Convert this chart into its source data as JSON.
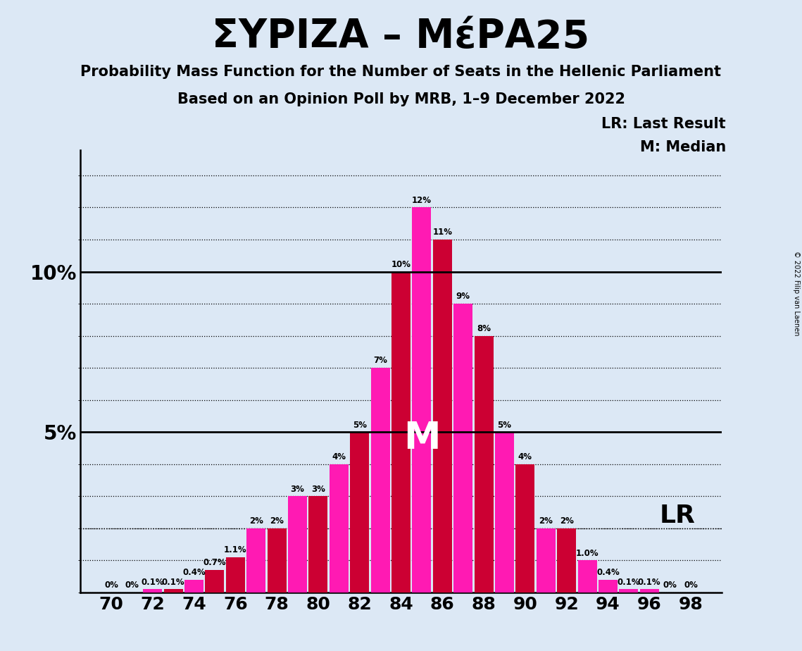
{
  "title": "ΣΥΡΙΖΑ – ΜέΡΑ25",
  "subtitle1": "Probability Mass Function for the Number of Seats in the Hellenic Parliament",
  "subtitle2": "Based on an Opinion Poll by MRB, 1–9 December 2022",
  "copyright": "© 2022 Filip van Laenen",
  "seats": [
    70,
    71,
    72,
    73,
    74,
    75,
    76,
    77,
    78,
    79,
    80,
    81,
    82,
    83,
    84,
    85,
    86,
    87,
    88,
    89,
    90,
    91,
    92,
    93,
    94,
    95,
    96,
    97,
    98
  ],
  "probabilities": [
    0.0,
    0.0,
    0.001,
    0.001,
    0.004,
    0.007,
    0.011,
    0.02,
    0.02,
    0.03,
    0.03,
    0.04,
    0.05,
    0.07,
    0.1,
    0.12,
    0.11,
    0.09,
    0.08,
    0.05,
    0.04,
    0.02,
    0.02,
    0.01,
    0.004,
    0.001,
    0.001,
    0.0,
    0.0
  ],
  "labels": [
    "0%",
    "0%",
    "0.1%",
    "0.1%",
    "0.4%",
    "0.7%",
    "1.1%",
    "2%",
    "2%",
    "3%",
    "3%",
    "4%",
    "5%",
    "7%",
    "10%",
    "12%",
    "11%",
    "9%",
    "8%",
    "5%",
    "4%",
    "2%",
    "2%",
    "1.0%",
    "0.4%",
    "0.1%",
    "0.1%",
    "0%",
    "0%"
  ],
  "colors": [
    "#ff1ab3",
    "#cc0033",
    "#ff1ab3",
    "#cc0033",
    "#ff1ab3",
    "#cc0033",
    "#cc0033",
    "#ff1ab3",
    "#cc0033",
    "#ff1ab3",
    "#cc0033",
    "#ff1ab3",
    "#cc0033",
    "#ff1ab3",
    "#cc0033",
    "#ff1ab3",
    "#cc0033",
    "#ff1ab3",
    "#cc0033",
    "#ff1ab3",
    "#cc0033",
    "#ff1ab3",
    "#cc0033",
    "#ff1ab3",
    "#ff1ab3",
    "#ff1ab3",
    "#ff1ab3",
    "#cc0033",
    "#cc0033"
  ],
  "median_seat": 85,
  "lr_seat": 92,
  "background_color": "#dce8f5",
  "lr_legend": "LR: Last Result",
  "m_legend": "M: Median",
  "lr_label": "LR",
  "m_label": "M"
}
